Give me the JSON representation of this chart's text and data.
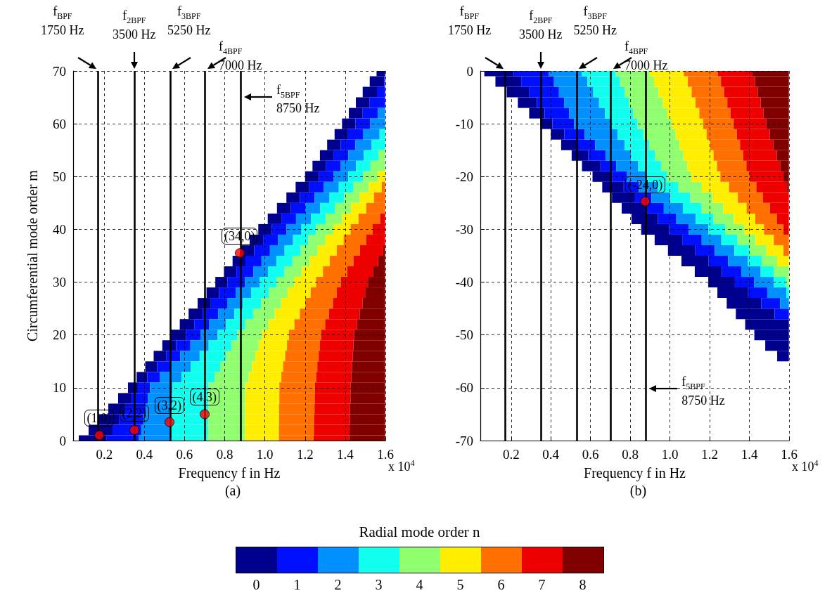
{
  "chart_data": [
    {
      "type": "bar",
      "orientation": "horizontal",
      "title": "(a)",
      "xlabel": "Frequency f in Hz",
      "ylabel": "Circumferential mode order m",
      "legend_title": "Radial mode order n",
      "legend": "bottom",
      "grid": true,
      "xlim": [
        0.045,
        1.6
      ],
      "xticks": [
        0.2,
        0.4,
        0.6,
        0.8,
        {
          "value": 1,
          "label": "1.0"
        },
        1.2,
        1.4,
        1.6
      ],
      "ylim": [
        0,
        70
      ],
      "yticks": [
        0,
        10,
        20,
        30,
        40,
        50,
        60,
        70
      ],
      "annotations": [
        "x 10$^{4}$",
        {
          "text": "(1,0)",
          "x": 0.175,
          "y": 1
        },
        {
          "text": "(2,2)",
          "x": 0.35,
          "y": 2
        },
        {
          "text": "(3,2)",
          "x": 0.525,
          "y": 3.5
        },
        {
          "text": "(4,3)",
          "x": 0.7,
          "y": 5
        },
        {
          "text": "(34,0)",
          "x": 0.875,
          "y": 35.5
        }
      ],
      "ref_lines": [
        {
          "axis": "x",
          "value": 0.175,
          "label": "f$_{BPF}$\n1750 Hz"
        },
        {
          "axis": "x",
          "value": 0.35,
          "label": "f$_{2BPF}$\n3500 Hz"
        },
        {
          "axis": "x",
          "value": 0.525,
          "label": "f$_{3BPF}$\n5250 Hz"
        },
        {
          "axis": "x",
          "value": 0.7,
          "label": "f$_{4BPF}$\n7000 Hz"
        },
        {
          "axis": "x",
          "value": 0.875,
          "label": "f$_{5BPF}$\n8750 Hz"
        }
      ],
      "x": [
        0,
        2,
        4,
        6,
        8,
        10,
        12,
        14,
        16,
        18,
        20,
        22,
        24,
        26,
        28,
        30,
        32,
        34,
        36,
        38,
        40,
        42,
        44,
        46,
        48,
        50,
        52,
        54,
        56,
        58,
        60,
        62,
        64,
        66,
        68,
        70
      ],
      "series": [
        {
          "name": "0",
          "color": "#00008f",
          "base": [
            0.073,
            0.122,
            0.171,
            0.22,
            0.269,
            0.318,
            0.361,
            0.404,
            0.446,
            0.489,
            0.532,
            0.576,
            0.62,
            0.665,
            0.709,
            0.753,
            0.796,
            0.839,
            0.881,
            0.924,
            0.967,
            1.014,
            1.06,
            1.107,
            1.153,
            1.2,
            1.237,
            1.274,
            1.31,
            1.347,
            1.384,
            1.418,
            1.453,
            1.487,
            1.522,
            1.556
          ],
          "values": [
            0.137,
            0.119,
            0.102,
            0.084,
            0.067,
            0.049,
            0.054,
            0.059,
            0.064,
            0.069,
            0.074,
            0.072,
            0.069,
            0.066,
            0.063,
            0.061,
            0.062,
            0.064,
            0.066,
            0.067,
            0.068,
            0.068,
            0.068,
            0.068,
            0.068,
            0.068,
            0.068,
            0.067,
            0.068,
            0.067,
            0.067,
            0.069,
            0.069,
            0.071,
            0.072,
            0.043
          ]
        },
        {
          "name": "1",
          "color": "#0010ff",
          "base": [
            0.21,
            0.241,
            0.273,
            0.304,
            0.336,
            0.367,
            0.415,
            0.463,
            0.51,
            0.558,
            0.606,
            0.648,
            0.689,
            0.731,
            0.772,
            0.814,
            0.858,
            0.903,
            0.947,
            0.991,
            1.035,
            1.082,
            1.128,
            1.175,
            1.221,
            1.268,
            1.305,
            1.341,
            1.378,
            1.414,
            1.451,
            1.487,
            1.522,
            1.558,
            1.594,
            null
          ],
          "values": [
            0.163,
            0.143,
            0.122,
            0.102,
            0.081,
            0.061,
            0.063,
            0.066,
            0.069,
            0.071,
            0.073,
            0.075,
            0.078,
            0.081,
            0.084,
            0.086,
            0.084,
            0.08,
            0.078,
            0.075,
            0.073,
            0.073,
            0.073,
            0.073,
            0.073,
            0.073,
            0.073,
            0.074,
            0.073,
            0.074,
            0.074,
            0.075,
            0.077,
            0.041,
            0.005,
            null
          ]
        },
        {
          "name": "2",
          "color": "#0090ff",
          "base": [
            0.373,
            0.384,
            0.395,
            0.406,
            0.417,
            0.428,
            0.478,
            0.529,
            0.579,
            0.629,
            0.679,
            0.723,
            0.767,
            0.812,
            0.856,
            0.9,
            0.942,
            0.983,
            1.025,
            1.066,
            1.108,
            1.155,
            1.201,
            1.248,
            1.294,
            1.341,
            1.378,
            1.415,
            1.451,
            1.488,
            1.525,
            1.562,
            null,
            null,
            null,
            null
          ],
          "values": [
            0.157,
            0.148,
            0.139,
            0.13,
            0.121,
            0.112,
            0.107,
            0.101,
            0.096,
            0.091,
            0.086,
            0.084,
            0.081,
            0.078,
            0.075,
            0.073,
            0.073,
            0.074,
            0.073,
            0.074,
            0.074,
            0.074,
            0.074,
            0.074,
            0.074,
            0.074,
            0.076,
            0.078,
            0.081,
            0.083,
            0.074,
            0.037,
            null,
            null,
            null,
            null
          ]
        },
        {
          "name": "3",
          "color": "#10ffef",
          "base": [
            0.53,
            0.532,
            0.534,
            0.536,
            0.538,
            0.54,
            0.585,
            0.63,
            0.675,
            0.72,
            0.765,
            0.807,
            0.848,
            0.89,
            0.931,
            0.973,
            1.015,
            1.057,
            1.098,
            1.14,
            1.182,
            1.229,
            1.275,
            1.322,
            1.368,
            1.415,
            1.454,
            1.493,
            1.532,
            1.571,
            null,
            null,
            null,
            null,
            null,
            null
          ],
          "values": [
            0.186,
            0.185,
            0.184,
            0.182,
            0.181,
            0.18,
            0.164,
            0.147,
            0.131,
            0.114,
            0.098,
            0.095,
            0.093,
            0.091,
            0.089,
            0.086,
            0.083,
            0.08,
            0.079,
            0.076,
            0.073,
            0.073,
            0.073,
            0.073,
            0.073,
            0.073,
            0.072,
            0.072,
            0.067,
            0.028,
            null,
            null,
            null,
            null,
            null,
            null
          ]
        },
        {
          "name": "4",
          "color": "#8fff70",
          "base": [
            0.716,
            0.717,
            0.718,
            0.718,
            0.719,
            0.72,
            0.749,
            0.777,
            0.806,
            0.834,
            0.863,
            0.902,
            0.941,
            0.981,
            1.02,
            1.059,
            1.098,
            1.137,
            1.177,
            1.216,
            1.255,
            1.302,
            1.348,
            1.395,
            1.441,
            1.488,
            1.526,
            1.565,
            null,
            null,
            null,
            null,
            null,
            null,
            null,
            null
          ],
          "values": [
            0.184,
            0.183,
            0.183,
            0.183,
            0.183,
            0.182,
            0.17,
            0.159,
            0.146,
            0.135,
            0.123,
            0.116,
            0.108,
            0.1,
            0.093,
            0.086,
            0.086,
            0.086,
            0.086,
            0.086,
            0.086,
            0.083,
            0.081,
            0.078,
            0.077,
            0.074,
            0.072,
            0.034,
            null,
            null,
            null,
            null,
            null,
            null,
            null,
            null
          ]
        },
        {
          "name": "5",
          "color": "#ffee00",
          "base": [
            0.9,
            0.9,
            0.901,
            0.901,
            0.902,
            0.902,
            0.919,
            0.936,
            0.952,
            0.969,
            0.986,
            1.018,
            1.049,
            1.081,
            1.113,
            1.145,
            1.184,
            1.223,
            1.263,
            1.302,
            1.341,
            1.385,
            1.429,
            1.473,
            1.518,
            1.562,
            null,
            null,
            null,
            null,
            null,
            null,
            null,
            null,
            null,
            null
          ],
          "values": [
            0.17,
            0.17,
            0.17,
            0.17,
            0.17,
            0.17,
            0.163,
            0.155,
            0.149,
            0.141,
            0.134,
            0.129,
            0.125,
            0.12,
            0.115,
            0.11,
            0.105,
            0.1,
            0.095,
            0.09,
            0.086,
            0.081,
            0.076,
            0.07,
            0.064,
            0.037,
            null,
            null,
            null,
            null,
            null,
            null,
            null,
            null,
            null,
            null
          ]
        },
        {
          "name": "6",
          "color": "#ff7000",
          "base": [
            1.07,
            1.07,
            1.071,
            1.071,
            1.072,
            1.072,
            1.082,
            1.091,
            1.101,
            1.11,
            1.12,
            1.147,
            1.174,
            1.201,
            1.228,
            1.255,
            1.289,
            1.323,
            1.358,
            1.392,
            1.427,
            1.466,
            1.505,
            1.543,
            1.582,
            null,
            null,
            null,
            null,
            null,
            null,
            null,
            null,
            null,
            null,
            null
          ],
          "values": [
            0.173,
            0.174,
            0.174,
            0.176,
            0.176,
            0.177,
            0.173,
            0.17,
            0.167,
            0.164,
            0.16,
            0.153,
            0.145,
            0.138,
            0.13,
            0.123,
            0.121,
            0.118,
            0.115,
            0.113,
            0.11,
            0.108,
            0.094,
            0.056,
            0.017,
            null,
            null,
            null,
            null,
            null,
            null,
            null,
            null,
            null,
            null,
            null
          ]
        },
        {
          "name": "7",
          "color": "#ee0000",
          "base": [
            1.243,
            1.244,
            1.245,
            1.247,
            1.248,
            1.249,
            1.255,
            1.261,
            1.268,
            1.274,
            1.28,
            1.3,
            1.319,
            1.339,
            1.358,
            1.378,
            1.41,
            1.441,
            1.473,
            1.505,
            1.537,
            1.574,
            null,
            null,
            null,
            null,
            null,
            null,
            null,
            null,
            null,
            null,
            null,
            null,
            null,
            null
          ],
          "values": [
            0.177,
            0.177,
            0.178,
            0.177,
            0.178,
            0.178,
            0.176,
            0.173,
            0.17,
            0.167,
            0.165,
            0.159,
            0.153,
            0.147,
            0.141,
            0.135,
            0.128,
            0.123,
            0.116,
            0.094,
            0.062,
            0.025,
            null,
            null,
            null,
            null,
            null,
            null,
            null,
            null,
            null,
            null,
            null,
            null,
            null,
            null
          ]
        },
        {
          "name": "8",
          "color": "#800000",
          "base": [
            1.42,
            1.421,
            1.423,
            1.424,
            1.426,
            1.427,
            1.431,
            1.434,
            1.438,
            1.441,
            1.445,
            1.459,
            1.472,
            1.486,
            1.499,
            1.513,
            1.538,
            1.564,
            1.589,
            null,
            null,
            null,
            null,
            null,
            null,
            null,
            null,
            null,
            null,
            null,
            null,
            null,
            null,
            null,
            null,
            null
          ],
          "values": [
            0.179,
            0.178,
            0.176,
            0.175,
            0.173,
            0.172,
            0.168,
            0.165,
            0.161,
            0.158,
            0.154,
            0.14,
            0.127,
            0.113,
            0.1,
            0.086,
            0.061,
            0.035,
            0.01,
            null,
            null,
            null,
            null,
            null,
            null,
            null,
            null,
            null,
            null,
            null,
            null,
            null,
            null,
            null,
            null,
            null
          ]
        },
        {
          "type": "scatter",
          "marker": "circle",
          "color": "#ff0000",
          "x": [
            1,
            2,
            3.5,
            5,
            35.5
          ],
          "values": [
            0.175,
            0.35,
            0.525,
            0.7,
            0.875
          ]
        }
      ]
    },
    {
      "type": "bar",
      "orientation": "horizontal",
      "title": "(b)",
      "xlabel": "Frequency f in Hz",
      "grid": true,
      "xlim": [
        0.045,
        1.6
      ],
      "xticks": [
        0.2,
        0.4,
        0.6,
        0.8,
        {
          "value": 1,
          "label": "1.0"
        },
        1.2,
        1.4,
        1.6
      ],
      "ylim": [
        -70,
        0
      ],
      "yticks": [
        -70,
        -60,
        -50,
        -40,
        -30,
        -20,
        -10,
        0
      ],
      "annotations": [
        "x 10$^{4}$",
        {
          "text": "(-24,0)",
          "x": 0.875,
          "y": -24.7
        }
      ],
      "ref_lines": [
        {
          "axis": "x",
          "value": 0.175,
          "label": "f$_{BPF}$\n1750 Hz"
        },
        {
          "axis": "x",
          "value": 0.35,
          "label": "f$_{2BPF}$\n3500 Hz"
        },
        {
          "axis": "x",
          "value": 0.525,
          "label": "f$_{3BPF}$\n5250 Hz"
        },
        {
          "axis": "x",
          "value": 0.7,
          "label": "f$_{4BPF}$\n7000 Hz"
        },
        {
          "axis": "x",
          "value": 0.875,
          "label": "f$_{5BPF}$\n8750 Hz"
        }
      ],
      "x": [
        0,
        -2,
        -4,
        -6,
        -8,
        -10,
        -12,
        -14,
        -16,
        -18,
        -20,
        -22,
        -24,
        -26,
        -28,
        -30,
        -32,
        -34,
        -36,
        -38,
        -40,
        -42,
        -44,
        -46,
        -48,
        -50,
        -52,
        -54
      ],
      "series": [
        {
          "color": "#00008f",
          "base": [
            0.065,
            0.121,
            0.178,
            0.234,
            0.291,
            0.347,
            0.4,
            0.452,
            0.505,
            0.557,
            0.61,
            0.659,
            0.708,
            0.757,
            0.806,
            0.855,
            0.923,
            0.99,
            1.058,
            1.125,
            1.193,
            1.239,
            1.286,
            1.332,
            1.379,
            1.425,
            1.48,
            1.54
          ],
          "values": [
            0.147,
            0.13,
            0.112,
            0.096,
            0.078,
            0.061,
            0.068,
            0.077,
            0.084,
            0.093,
            0.1,
            0.108,
            0.116,
            0.125,
            0.133,
            0.141,
            0.139,
            0.138,
            0.137,
            0.136,
            0.134,
            0.155,
            0.174,
            0.195,
            0.22,
            0.174,
            0.119,
            0.059
          ]
        },
        {
          "color": "#0010ff",
          "base": [
            0.212,
            0.251,
            0.29,
            0.33,
            0.369,
            0.408,
            0.468,
            0.529,
            0.589,
            0.65,
            0.71,
            0.767,
            0.824,
            0.882,
            0.939,
            0.996,
            1.062,
            1.128,
            1.195,
            1.261,
            1.327,
            1.394,
            1.46,
            1.527,
            null,
            null,
            null,
            null
          ],
          "values": [
            0.178,
            0.165,
            0.151,
            0.137,
            0.123,
            0.11,
            0.103,
            0.095,
            0.087,
            0.079,
            0.072,
            0.077,
            0.083,
            0.087,
            0.093,
            0.098,
            0.098,
            0.098,
            0.098,
            0.098,
            0.098,
            0.096,
            0.095,
            0.072,
            null,
            null,
            null,
            null
          ]
        },
        {
          "color": "#0090ff",
          "base": [
            0.39,
            0.416,
            0.441,
            0.467,
            0.492,
            0.518,
            0.571,
            0.624,
            0.676,
            0.729,
            0.782,
            0.844,
            0.907,
            0.969,
            1.032,
            1.094,
            1.16,
            1.226,
            1.293,
            1.359,
            1.425,
            1.49,
            1.555,
            null,
            null,
            null,
            null,
            null
          ],
          "values": [
            0.165,
            0.168,
            0.173,
            0.176,
            0.181,
            0.184,
            0.165,
            0.147,
            0.129,
            0.111,
            0.092,
            0.094,
            0.095,
            0.096,
            0.097,
            0.099,
            0.099,
            0.099,
            0.098,
            0.098,
            0.098,
            0.096,
            0.044,
            null,
            null,
            null,
            null,
            null
          ]
        },
        {
          "color": "#10ffef",
          "base": [
            0.555,
            0.584,
            0.614,
            0.643,
            0.673,
            0.702,
            0.736,
            0.771,
            0.805,
            0.84,
            0.874,
            0.938,
            1.002,
            1.065,
            1.129,
            1.193,
            1.259,
            1.325,
            1.391,
            1.457,
            1.523,
            1.586,
            null,
            null,
            null,
            null,
            null,
            null
          ],
          "values": [
            0.172,
            0.165,
            0.157,
            0.15,
            0.142,
            0.135,
            0.13,
            0.125,
            0.12,
            0.115,
            0.11,
            0.105,
            0.1,
            0.095,
            0.09,
            0.085,
            0.08,
            0.076,
            0.071,
            0.067,
            0.062,
            0.013,
            null,
            null,
            null,
            null,
            null,
            null
          ]
        },
        {
          "color": "#8fff70",
          "base": [
            0.727,
            0.749,
            0.771,
            0.793,
            0.815,
            0.837,
            0.866,
            0.896,
            0.925,
            0.955,
            0.984,
            1.043,
            1.102,
            1.16,
            1.219,
            1.278,
            1.339,
            1.401,
            1.462,
            1.524,
            1.585,
            null,
            null,
            null,
            null,
            null,
            null,
            null
          ],
          "values": [
            0.171,
            0.171,
            0.171,
            0.172,
            0.172,
            0.172,
            0.163,
            0.152,
            0.143,
            0.132,
            0.123,
            0.118,
            0.113,
            0.108,
            0.103,
            0.098,
            0.092,
            0.085,
            0.078,
            0.075,
            0.014,
            null,
            null,
            null,
            null,
            null,
            null,
            null
          ]
        },
        {
          "color": "#ffee00",
          "base": [
            0.898,
            0.92,
            0.942,
            0.965,
            0.987,
            1.009,
            1.029,
            1.048,
            1.068,
            1.087,
            1.107,
            1.161,
            1.215,
            1.268,
            1.322,
            1.376,
            1.431,
            1.486,
            1.54,
            null,
            null,
            null,
            null,
            null,
            null,
            null,
            null,
            null
          ],
          "values": [
            0.172,
            0.17,
            0.167,
            0.164,
            0.161,
            0.159,
            0.156,
            0.154,
            0.152,
            0.15,
            0.147,
            0.137,
            0.127,
            0.118,
            0.108,
            0.098,
            0.092,
            0.086,
            0.059,
            null,
            null,
            null,
            null,
            null,
            null,
            null,
            null,
            null
          ]
        },
        {
          "color": "#ff7000",
          "base": [
            1.07,
            1.09,
            1.109,
            1.129,
            1.148,
            1.168,
            1.185,
            1.202,
            1.22,
            1.237,
            1.254,
            1.298,
            1.342,
            1.386,
            1.43,
            1.474,
            1.523,
            1.572,
            null,
            null,
            null,
            null,
            null,
            null,
            null,
            null,
            null,
            null
          ],
          "values": [
            0.171,
            0.167,
            0.164,
            0.16,
            0.157,
            0.153,
            0.152,
            0.151,
            0.149,
            0.148,
            0.147,
            0.137,
            0.127,
            0.118,
            0.108,
            0.098,
            0.076,
            0.027,
            null,
            null,
            null,
            null,
            null,
            null,
            null,
            null,
            null,
            null
          ]
        },
        {
          "color": "#ee0000",
          "base": [
            1.241,
            1.257,
            1.273,
            1.289,
            1.305,
            1.321,
            1.337,
            1.353,
            1.369,
            1.385,
            1.401,
            1.435,
            1.469,
            1.504,
            1.538,
            1.572,
            null,
            null,
            null,
            null,
            null,
            null,
            null,
            null,
            null,
            null,
            null,
            null
          ],
          "values": [
            0.172,
            0.171,
            0.169,
            0.168,
            0.166,
            0.165,
            0.166,
            0.167,
            0.169,
            0.17,
            0.171,
            0.155,
            0.13,
            0.095,
            0.061,
            0.027,
            null,
            null,
            null,
            null,
            null,
            null,
            null,
            null,
            null,
            null,
            null,
            null
          ]
        },
        {
          "color": "#800000",
          "base": [
            1.413,
            1.428,
            1.442,
            1.457,
            1.471,
            1.486,
            1.503,
            1.52,
            1.538,
            1.555,
            1.572,
            1.59,
            null,
            null,
            null,
            null,
            null,
            null,
            null,
            null,
            null,
            null,
            null,
            null,
            null,
            null,
            null,
            null
          ],
          "values": [
            0.186,
            0.171,
            0.157,
            0.142,
            0.128,
            0.113,
            0.096,
            0.079,
            0.061,
            0.044,
            0.027,
            0.009,
            null,
            null,
            null,
            null,
            null,
            null,
            null,
            null,
            null,
            null,
            null,
            null,
            null,
            null,
            null,
            null
          ]
        },
        {
          "type": "scatter",
          "marker": "circle",
          "color": "#ff0000",
          "x": [
            -24.7
          ],
          "values": [
            0.875
          ]
        }
      ]
    }
  ]
}
